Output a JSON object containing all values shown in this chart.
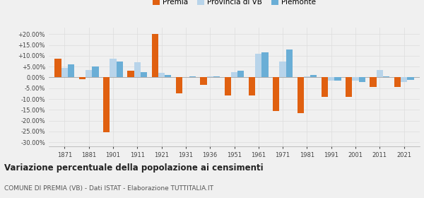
{
  "years": [
    1871,
    1881,
    1901,
    1911,
    1921,
    1931,
    1936,
    1951,
    1961,
    1971,
    1981,
    1991,
    2001,
    2011,
    2021
  ],
  "premia": [
    8.8,
    -0.8,
    -25.5,
    3.0,
    20.2,
    -7.5,
    -3.5,
    -8.5,
    -8.5,
    -15.5,
    -16.5,
    -9.0,
    -9.0,
    -4.5,
    -4.5
  ],
  "provincia_vb": [
    4.5,
    3.5,
    8.5,
    7.0,
    2.0,
    0.2,
    0.5,
    2.5,
    11.0,
    7.5,
    0.5,
    -1.5,
    -1.5,
    3.5,
    -2.0
  ],
  "piemonte": [
    6.0,
    5.0,
    7.5,
    2.5,
    1.0,
    0.5,
    0.5,
    3.0,
    11.5,
    13.0,
    1.0,
    -1.5,
    -2.0,
    0.5,
    -1.0
  ],
  "color_premia": "#e06010",
  "color_provincia": "#b8d4ea",
  "color_piemonte": "#6aaed6",
  "title": "Variazione percentuale della popolazione ai censimenti",
  "subtitle": "COMUNE DI PREMIA (VB) - Dati ISTAT - Elaborazione TUTTITALIA.IT",
  "ylim": [
    -32,
    23
  ],
  "yticks": [
    -30,
    -25,
    -20,
    -15,
    -10,
    -5,
    0,
    5,
    10,
    15,
    20
  ],
  "background_color": "#f0f0f0",
  "grid_color": "#dddddd"
}
